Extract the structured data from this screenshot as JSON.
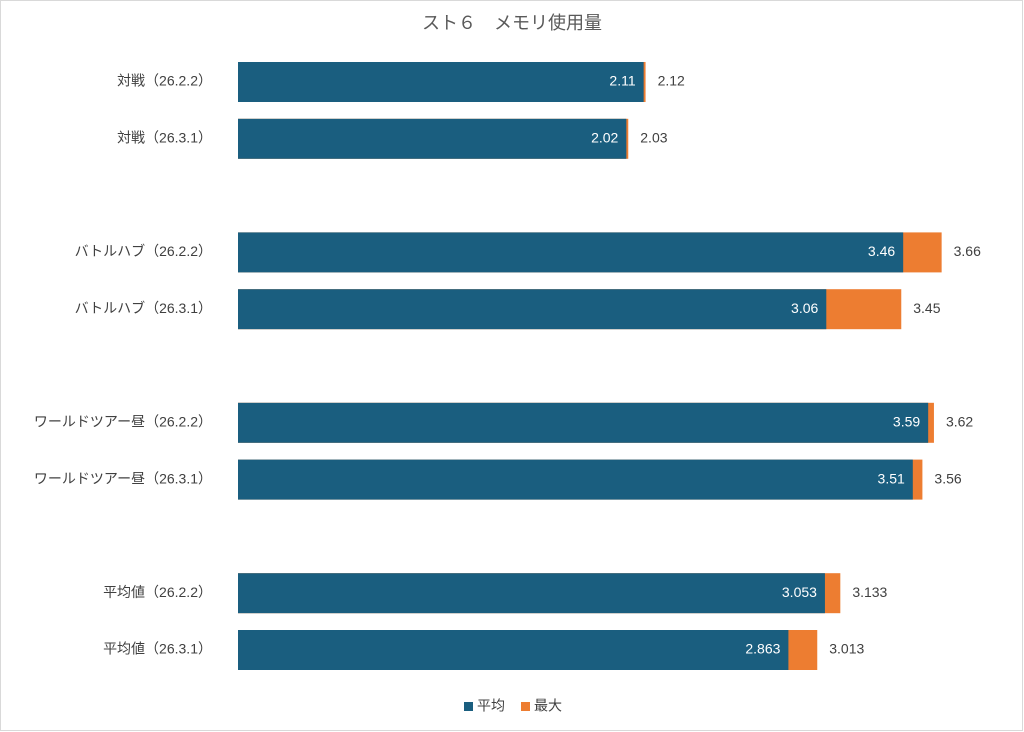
{
  "chart_data": {
    "type": "bar",
    "orientation": "horizontal",
    "overlap": true,
    "title": "スト６　メモリ使用量",
    "categories": [
      "対戦（26.2.2）",
      "対戦（26.3.1）",
      null,
      "バトルハブ（26.2.2）",
      "バトルハブ（26.3.1）",
      null,
      "ワールドツアー昼（26.2.2）",
      "ワールドツアー昼（26.3.1）",
      null,
      "平均値（26.2.2）",
      "平均値（26.3.1）"
    ],
    "series": [
      {
        "name": "平均",
        "color": "#1a5e7f",
        "values": [
          2.11,
          2.02,
          null,
          3.46,
          3.06,
          null,
          3.59,
          3.51,
          null,
          3.053,
          2.863
        ]
      },
      {
        "name": "最大",
        "color": "#ed7d31",
        "values": [
          2.12,
          2.03,
          null,
          3.66,
          3.45,
          null,
          3.62,
          3.56,
          null,
          3.133,
          3.013
        ]
      }
    ],
    "xlim": [
      0,
      4
    ],
    "legend": "bottom"
  }
}
